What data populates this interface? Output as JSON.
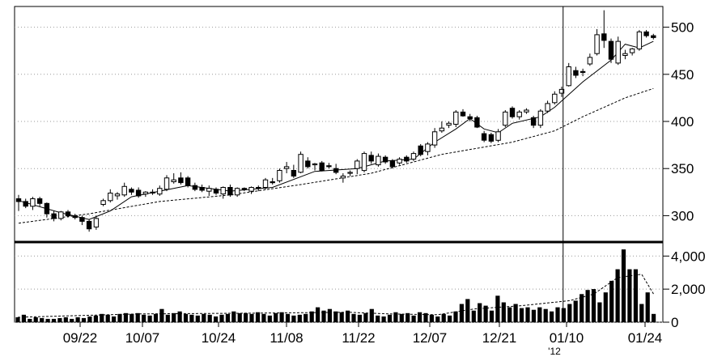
{
  "chart_data": [
    {
      "type": "candlestick",
      "title": "",
      "ylim": [
        272,
        522
      ],
      "y_ticks": [
        300,
        350,
        400,
        450,
        500
      ],
      "y_tick_labels": [
        "300",
        "350",
        "400",
        "450",
        "500"
      ],
      "x_ticks": [
        "09/22",
        "10/07",
        "10/24",
        "11/08",
        "11/22",
        "12/07",
        "12/21",
        "01/10",
        "01/24"
      ],
      "year_marker": "'12",
      "candles": [
        {
          "o": 318,
          "h": 322,
          "l": 305,
          "c": 315
        },
        {
          "o": 315,
          "h": 318,
          "l": 308,
          "c": 310
        },
        {
          "o": 310,
          "h": 320,
          "l": 306,
          "c": 318
        },
        {
          "o": 318,
          "h": 320,
          "l": 310,
          "c": 313
        },
        {
          "o": 313,
          "h": 314,
          "l": 298,
          "c": 302
        },
        {
          "o": 302,
          "h": 305,
          "l": 294,
          "c": 297
        },
        {
          "o": 297,
          "h": 305,
          "l": 295,
          "c": 304
        },
        {
          "o": 304,
          "h": 306,
          "l": 298,
          "c": 300
        },
        {
          "o": 300,
          "h": 302,
          "l": 296,
          "c": 298
        },
        {
          "o": 298,
          "h": 300,
          "l": 290,
          "c": 294
        },
        {
          "o": 294,
          "h": 296,
          "l": 283,
          "c": 286
        },
        {
          "o": 288,
          "h": 300,
          "l": 285,
          "c": 297
        },
        {
          "o": 312,
          "h": 318,
          "l": 310,
          "c": 316
        },
        {
          "o": 316,
          "h": 328,
          "l": 314,
          "c": 324
        },
        {
          "o": 321,
          "h": 325,
          "l": 317,
          "c": 323
        },
        {
          "o": 322,
          "h": 335,
          "l": 320,
          "c": 331
        },
        {
          "o": 328,
          "h": 330,
          "l": 322,
          "c": 325
        },
        {
          "o": 327,
          "h": 330,
          "l": 319,
          "c": 321
        },
        {
          "o": 323,
          "h": 326,
          "l": 320,
          "c": 325
        },
        {
          "o": 325,
          "h": 328,
          "l": 322,
          "c": 324
        },
        {
          "o": 323,
          "h": 332,
          "l": 321,
          "c": 329
        },
        {
          "o": 328,
          "h": 343,
          "l": 326,
          "c": 340
        },
        {
          "o": 336,
          "h": 345,
          "l": 334,
          "c": 338
        },
        {
          "o": 340,
          "h": 346,
          "l": 333,
          "c": 335
        },
        {
          "o": 340,
          "h": 342,
          "l": 330,
          "c": 332
        },
        {
          "o": 332,
          "h": 335,
          "l": 326,
          "c": 328
        },
        {
          "o": 330,
          "h": 333,
          "l": 325,
          "c": 327
        },
        {
          "o": 326,
          "h": 332,
          "l": 321,
          "c": 329
        },
        {
          "o": 328,
          "h": 330,
          "l": 322,
          "c": 324
        },
        {
          "o": 323,
          "h": 331,
          "l": 318,
          "c": 330
        },
        {
          "o": 330,
          "h": 333,
          "l": 320,
          "c": 322
        },
        {
          "o": 322,
          "h": 330,
          "l": 320,
          "c": 329
        },
        {
          "o": 329,
          "h": 330,
          "l": 326,
          "c": 328
        },
        {
          "o": 326,
          "h": 331,
          "l": 323,
          "c": 330
        },
        {
          "o": 330,
          "h": 332,
          "l": 326,
          "c": 329
        },
        {
          "o": 330,
          "h": 340,
          "l": 328,
          "c": 338
        },
        {
          "o": 336,
          "h": 340,
          "l": 333,
          "c": 335
        },
        {
          "o": 337,
          "h": 350,
          "l": 335,
          "c": 348
        },
        {
          "o": 350,
          "h": 357,
          "l": 345,
          "c": 352
        },
        {
          "o": 348,
          "h": 354,
          "l": 340,
          "c": 342
        },
        {
          "o": 346,
          "h": 368,
          "l": 345,
          "c": 365
        },
        {
          "o": 358,
          "h": 362,
          "l": 350,
          "c": 352
        },
        {
          "o": 354,
          "h": 356,
          "l": 348,
          "c": 355
        },
        {
          "o": 356,
          "h": 358,
          "l": 347,
          "c": 348
        },
        {
          "o": 353,
          "h": 356,
          "l": 350,
          "c": 352
        },
        {
          "o": 350,
          "h": 355,
          "l": 344,
          "c": 346
        },
        {
          "o": 340,
          "h": 345,
          "l": 335,
          "c": 342
        },
        {
          "o": 345,
          "h": 348,
          "l": 342,
          "c": 346
        },
        {
          "o": 350,
          "h": 360,
          "l": 344,
          "c": 358
        },
        {
          "o": 348,
          "h": 368,
          "l": 346,
          "c": 366
        },
        {
          "o": 364,
          "h": 368,
          "l": 355,
          "c": 358
        },
        {
          "o": 354,
          "h": 366,
          "l": 352,
          "c": 363
        },
        {
          "o": 362,
          "h": 364,
          "l": 355,
          "c": 357
        },
        {
          "o": 358,
          "h": 360,
          "l": 350,
          "c": 352
        },
        {
          "o": 356,
          "h": 362,
          "l": 354,
          "c": 360
        },
        {
          "o": 362,
          "h": 364,
          "l": 356,
          "c": 358
        },
        {
          "o": 360,
          "h": 368,
          "l": 358,
          "c": 366
        },
        {
          "o": 374,
          "h": 376,
          "l": 363,
          "c": 365
        },
        {
          "o": 368,
          "h": 378,
          "l": 364,
          "c": 376
        },
        {
          "o": 375,
          "h": 393,
          "l": 372,
          "c": 389
        },
        {
          "o": 390,
          "h": 400,
          "l": 388,
          "c": 393
        },
        {
          "o": 396,
          "h": 400,
          "l": 393,
          "c": 398
        },
        {
          "o": 397,
          "h": 412,
          "l": 394,
          "c": 410
        },
        {
          "o": 410,
          "h": 413,
          "l": 405,
          "c": 406
        },
        {
          "o": 405,
          "h": 408,
          "l": 400,
          "c": 403
        },
        {
          "o": 404,
          "h": 406,
          "l": 393,
          "c": 394
        },
        {
          "o": 387,
          "h": 390,
          "l": 378,
          "c": 380
        },
        {
          "o": 386,
          "h": 388,
          "l": 377,
          "c": 379
        },
        {
          "o": 380,
          "h": 392,
          "l": 378,
          "c": 389
        },
        {
          "o": 396,
          "h": 412,
          "l": 394,
          "c": 410
        },
        {
          "o": 414,
          "h": 416,
          "l": 403,
          "c": 405
        },
        {
          "o": 405,
          "h": 412,
          "l": 402,
          "c": 410
        },
        {
          "o": 410,
          "h": 414,
          "l": 408,
          "c": 412
        },
        {
          "o": 404,
          "h": 406,
          "l": 393,
          "c": 396
        },
        {
          "o": 396,
          "h": 413,
          "l": 393,
          "c": 411
        },
        {
          "o": 411,
          "h": 422,
          "l": 409,
          "c": 419
        },
        {
          "o": 420,
          "h": 432,
          "l": 418,
          "c": 429
        },
        {
          "o": 430,
          "h": 437,
          "l": 426,
          "c": 434
        },
        {
          "o": 438,
          "h": 462,
          "l": 437,
          "c": 458
        },
        {
          "o": 454,
          "h": 458,
          "l": 446,
          "c": 449
        },
        {
          "o": 453,
          "h": 456,
          "l": 448,
          "c": 452
        },
        {
          "o": 461,
          "h": 472,
          "l": 459,
          "c": 468
        },
        {
          "o": 472,
          "h": 498,
          "l": 470,
          "c": 492
        },
        {
          "o": 493,
          "h": 518,
          "l": 478,
          "c": 486
        },
        {
          "o": 485,
          "h": 488,
          "l": 462,
          "c": 466
        },
        {
          "o": 462,
          "h": 490,
          "l": 460,
          "c": 485
        },
        {
          "o": 470,
          "h": 476,
          "l": 466,
          "c": 472
        },
        {
          "o": 473,
          "h": 478,
          "l": 470,
          "c": 477
        },
        {
          "o": 477,
          "h": 497,
          "l": 475,
          "c": 495
        },
        {
          "o": 495,
          "h": 497,
          "l": 489,
          "c": 491
        },
        {
          "o": 491,
          "h": 493,
          "l": 487,
          "c": 489
        }
      ],
      "ma_short": [
        [
          0,
          316
        ],
        [
          6,
          303
        ],
        [
          10,
          296
        ],
        [
          13,
          305
        ],
        [
          16,
          320
        ],
        [
          24,
          332
        ],
        [
          30,
          326
        ],
        [
          36,
          330
        ],
        [
          42,
          347
        ],
        [
          48,
          350
        ],
        [
          52,
          358
        ],
        [
          56,
          360
        ],
        [
          59,
          378
        ],
        [
          62,
          392
        ],
        [
          64,
          403
        ],
        [
          66,
          392
        ],
        [
          68,
          388
        ],
        [
          70,
          398
        ],
        [
          74,
          405
        ],
        [
          76,
          415
        ],
        [
          80,
          442
        ],
        [
          84,
          465
        ],
        [
          86,
          482
        ],
        [
          88,
          478
        ],
        [
          90,
          485
        ]
      ],
      "ma_long": [
        [
          0,
          292
        ],
        [
          10,
          302
        ],
        [
          20,
          315
        ],
        [
          30,
          322
        ],
        [
          40,
          333
        ],
        [
          50,
          345
        ],
        [
          60,
          365
        ],
        [
          70,
          378
        ],
        [
          76,
          390
        ],
        [
          80,
          405
        ],
        [
          86,
          425
        ],
        [
          90,
          435
        ]
      ],
      "crosshair_index": 77.2
    },
    {
      "type": "bar",
      "ylim": [
        0,
        4700
      ],
      "y_ticks": [
        0,
        2000,
        4000
      ],
      "y_tick_labels": [
        "0",
        "2,000",
        "4,000"
      ],
      "values": [
        300,
        450,
        200,
        300,
        250,
        200,
        200,
        250,
        300,
        200,
        300,
        250,
        350,
        400,
        500,
        450,
        350,
        500,
        550,
        500,
        550,
        450,
        400,
        500,
        800,
        450,
        550,
        650,
        500,
        450,
        400,
        500,
        450,
        350,
        450,
        500,
        650,
        550,
        550,
        500,
        600,
        500,
        400,
        550,
        600,
        500,
        400,
        450,
        500,
        650,
        900,
        700,
        800,
        650,
        600,
        700,
        500,
        450,
        550,
        800,
        400,
        350,
        450,
        600,
        500,
        550,
        400,
        600,
        550,
        450,
        350,
        500,
        400,
        650,
        1100,
        1400,
        700,
        1150,
        1000,
        700,
        1600,
        1200,
        900,
        1100,
        850,
        900,
        750,
        900,
        800,
        650,
        900,
        850,
        1100,
        1300,
        1700,
        1950,
        2000,
        1200,
        1800,
        2500,
        3200,
        4400,
        3200,
        3200,
        1100,
        1800,
        500
      ],
      "ma": [
        [
          0,
          300
        ],
        [
          20,
          500
        ],
        [
          40,
          550
        ],
        [
          55,
          600
        ],
        [
          62,
          500
        ],
        [
          70,
          450
        ],
        [
          76,
          800
        ],
        [
          84,
          1000
        ],
        [
          92,
          1300
        ],
        [
          96,
          1700
        ],
        [
          100,
          2700
        ],
        [
          104,
          2900
        ],
        [
          106,
          1700
        ]
      ]
    }
  ]
}
